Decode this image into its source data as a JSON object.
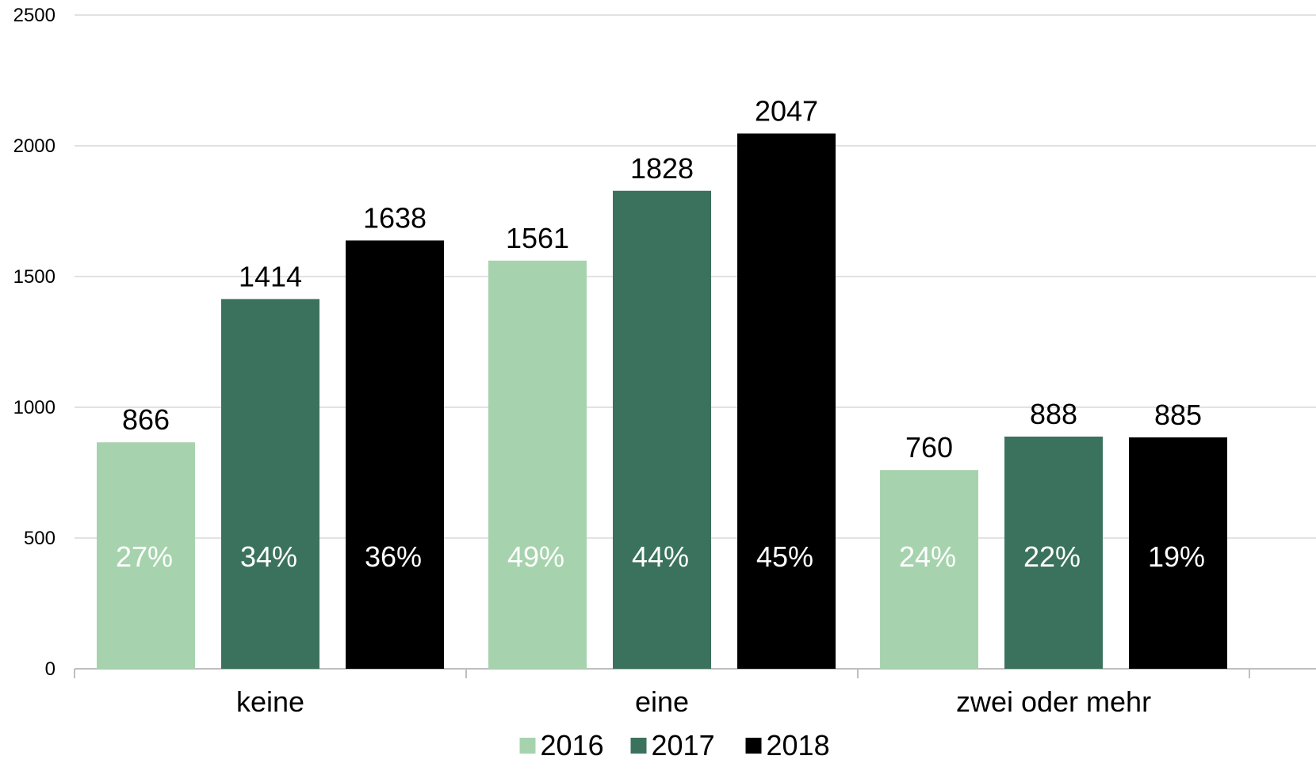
{
  "chart_data": {
    "type": "bar",
    "categories": [
      "keine",
      "eine",
      "zwei oder mehr"
    ],
    "series": [
      {
        "name": "2016",
        "color": "#a6d3ae",
        "values": [
          866,
          1561,
          760
        ],
        "percent_labels": [
          "27%",
          "49%",
          "24%"
        ]
      },
      {
        "name": "2017",
        "color": "#3b725e",
        "values": [
          1414,
          1828,
          888
        ],
        "percent_labels": [
          "34%",
          "44%",
          "22%"
        ]
      },
      {
        "name": "2018",
        "color": "#000000",
        "values": [
          1638,
          2047,
          885
        ],
        "percent_labels": [
          "36%",
          "45%",
          "19%"
        ]
      }
    ],
    "y_ticks": [
      "0",
      "500",
      "1000",
      "1500",
      "2000",
      "2500"
    ],
    "ylim": [
      0,
      2500
    ],
    "grid": true,
    "legend_position": "bottom",
    "title": "",
    "xlabel": "",
    "ylabel": ""
  }
}
